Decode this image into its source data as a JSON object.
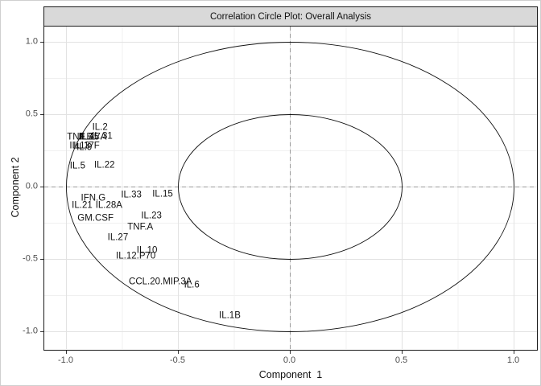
{
  "colors": {
    "strip_bg": "#d9d9d9",
    "panel_border": "#1a1a1a",
    "grid_major": "#e2e2e2",
    "grid_minor": "#f0f0f0",
    "zero_line": "#9a9a9a",
    "circle_stroke": "#111111",
    "tick_text": "#4d4d4d",
    "label_text": "#111111"
  },
  "chart_data": {
    "type": "scatter",
    "title": "Correlation Circle Plot: Overall Analysis",
    "xlabel": "Component  1",
    "ylabel": "Component 2",
    "xlim": [
      -1.1,
      1.1
    ],
    "ylim": [
      -1.12,
      1.12
    ],
    "grid": {
      "major": [
        -1.0,
        -0.5,
        0.0,
        0.5,
        1.0
      ],
      "minor": [
        -0.75,
        -0.25,
        0.25,
        0.75
      ]
    },
    "x_ticks": [
      {
        "value": -1.0,
        "label": "-1.0"
      },
      {
        "value": -0.5,
        "label": "-0.5"
      },
      {
        "value": 0.0,
        "label": "0.0"
      },
      {
        "value": 0.5,
        "label": "0.5"
      },
      {
        "value": 1.0,
        "label": "1.0"
      }
    ],
    "y_ticks": [
      {
        "value": 1.0,
        "label": "1.0"
      },
      {
        "value": 0.5,
        "label": "0.5"
      },
      {
        "value": 0.0,
        "label": "0.0"
      },
      {
        "value": -0.5,
        "label": "-0.5"
      },
      {
        "value": -1.0,
        "label": "-1.0"
      }
    ],
    "zero_lines_dashed": true,
    "circles": [
      {
        "name": "outer-correlation-circle",
        "radius": 1.0
      },
      {
        "name": "inner-correlation-circle",
        "radius": 0.5
      }
    ],
    "points": [
      {
        "label": "IL.2",
        "x": -0.85,
        "y": 0.41
      },
      {
        "label": "TNF.B",
        "x": -0.94,
        "y": 0.34
      },
      {
        "label": "IL.4",
        "x": -0.91,
        "y": 0.34
      },
      {
        "label": "IL.25",
        "x": -0.9,
        "y": 0.34
      },
      {
        "label": "IL.17A",
        "x": -0.88,
        "y": 0.34
      },
      {
        "label": "IL.31",
        "x": -0.84,
        "y": 0.35
      },
      {
        "label": "IL.13",
        "x": -0.94,
        "y": 0.28
      },
      {
        "label": "IL.9",
        "x": -0.92,
        "y": 0.27
      },
      {
        "label": "IL.17F",
        "x": -0.91,
        "y": 0.28
      },
      {
        "label": "IL.5",
        "x": -0.95,
        "y": 0.14
      },
      {
        "label": "IL.22",
        "x": -0.83,
        "y": 0.15
      },
      {
        "label": "IFN.G",
        "x": -0.88,
        "y": -0.08
      },
      {
        "label": "IL.33",
        "x": -0.71,
        "y": -0.06
      },
      {
        "label": "IL.15",
        "x": -0.57,
        "y": -0.05
      },
      {
        "label": "IL.21",
        "x": -0.93,
        "y": -0.13
      },
      {
        "label": "IL.28A",
        "x": -0.81,
        "y": -0.13
      },
      {
        "label": "IL.23",
        "x": -0.62,
        "y": -0.2
      },
      {
        "label": "GM.CSF",
        "x": -0.87,
        "y": -0.22
      },
      {
        "label": "TNF.A",
        "x": -0.67,
        "y": -0.28
      },
      {
        "label": "IL.27",
        "x": -0.77,
        "y": -0.35
      },
      {
        "label": "IL.10",
        "x": -0.64,
        "y": -0.44
      },
      {
        "label": "IL.12.P70",
        "x": -0.69,
        "y": -0.48
      },
      {
        "label": "CCL.20.MIP.3A",
        "x": -0.58,
        "y": -0.66
      },
      {
        "label": "IL.6",
        "x": -0.44,
        "y": -0.68
      },
      {
        "label": "IL.1B",
        "x": -0.27,
        "y": -0.89
      }
    ]
  }
}
